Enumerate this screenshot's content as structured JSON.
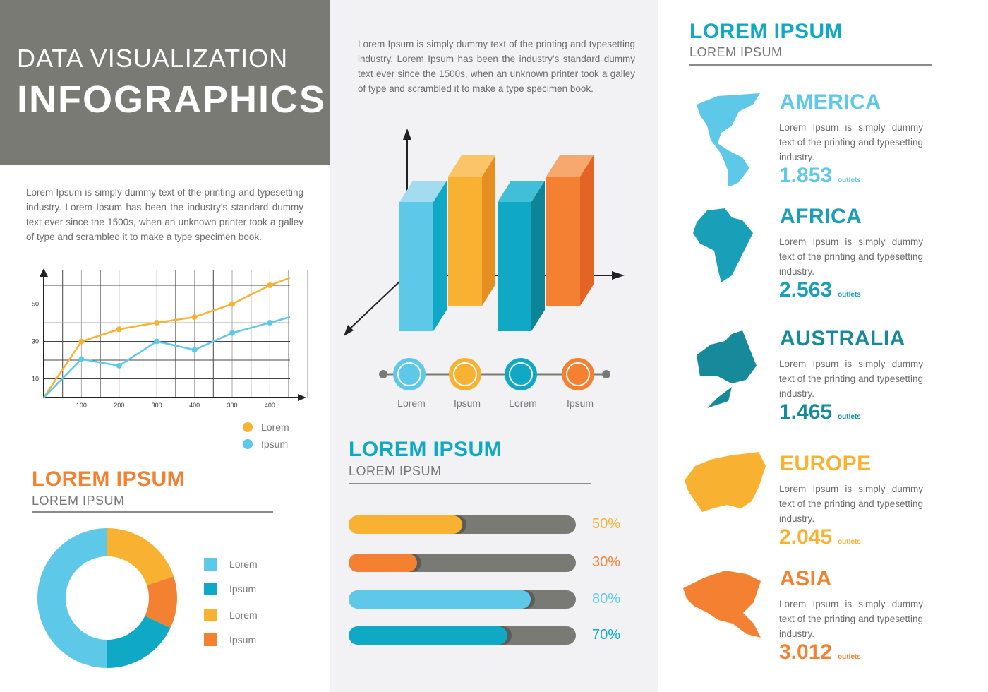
{
  "header": {
    "subtitle": "DATA VISUALIZATION",
    "title": "INFOGRAPHICS"
  },
  "left_paragraph": "Lorem Ipsum is simply dummy text of the printing and typesetting industry. Lorem Ipsum has been the industry's standard dummy text ever since the 1500s, when an unknown printer took a galley of type and scrambled it to make a type specimen book.",
  "middle_paragraph": "Lorem Ipsum is simply dummy text of the printing and typesetting industry. Lorem Ipsum has been the industry's standard dummy text ever since the 1500s, when an unknown printer took a galley of type and scrambled it to make a type specimen book.",
  "colors": {
    "light_blue": "#5ec8e8",
    "teal": "#0fa8c5",
    "yellow": "#f9b132",
    "orange": "#f38131",
    "gray": "#7a7a75",
    "dark_teal": "#16899b"
  },
  "donut_section": {
    "title": "LOREM IPSUM",
    "subtitle": "LOREM IPSUM"
  },
  "progress_section": {
    "title": "LOREM IPSUM",
    "subtitle": "LOREM IPSUM"
  },
  "regions_section": {
    "title": "LOREM IPSUM",
    "subtitle": "LOREM IPSUM"
  },
  "chart_data": [
    {
      "type": "line",
      "x_labels": [
        "100",
        "200",
        "300",
        "400",
        "300",
        "400"
      ],
      "y_ticks": [
        "10",
        "30",
        "50"
      ],
      "ylim": [
        0,
        65
      ],
      "grid": true,
      "legend": "bottom-right",
      "series": [
        {
          "name": "Lorem",
          "color": "#f9b132",
          "values": [
            0,
            30,
            36.5,
            40,
            43,
            50,
            60,
            64
          ]
        },
        {
          "name": "Ipsum",
          "color": "#5ec8e8",
          "values": [
            0,
            20.5,
            17,
            30,
            25.5,
            34.5,
            40,
            43
          ]
        }
      ]
    },
    {
      "type": "bar",
      "style": "3d",
      "categories": [
        "Lorem",
        "Ipsum",
        "Lorem",
        "Ipsum"
      ],
      "values": [
        1,
        1,
        1,
        1
      ],
      "colors": [
        "#5ec8e8",
        "#f9b132",
        "#0fa8c5",
        "#f38131"
      ]
    },
    {
      "type": "pie",
      "donut": true,
      "legend": "right",
      "slices": [
        {
          "label": "Lorem",
          "value": 50,
          "color": "#5ec8e8"
        },
        {
          "label": "Ipsum",
          "value": 18,
          "color": "#0fa8c5"
        },
        {
          "label": "Lorem",
          "value": 20,
          "color": "#f9b132"
        },
        {
          "label": "Ipsum",
          "value": 12,
          "color": "#f38131"
        }
      ]
    },
    {
      "type": "bar",
      "orientation": "horizontal",
      "bars": [
        {
          "value": 50,
          "label": "50%",
          "color": "#f9b132"
        },
        {
          "value": 30,
          "label": "30%",
          "color": "#f38131"
        },
        {
          "value": 80,
          "label": "80%",
          "color": "#5ec8e8"
        },
        {
          "value": 70,
          "label": "70%",
          "color": "#0fa8c5"
        }
      ]
    }
  ],
  "regions": [
    {
      "name": "AMERICA",
      "text": "Lorem Ipsum is simply dummy text of the printing and typesetting industry.",
      "value": "1.853",
      "unit": "outlets",
      "color": "#5ec8e8",
      "icon": "americas-map-icon"
    },
    {
      "name": "AFRICA",
      "text": "Lorem Ipsum is simply dummy text of the printing and typesetting industry.",
      "value": "2.563",
      "unit": "outlets",
      "color": "#1a9fb8",
      "icon": "africa-map-icon"
    },
    {
      "name": "AUSTRALIA",
      "text": "Lorem Ipsum is simply dummy text of the printing and typesetting industry.",
      "value": "1.465",
      "unit": "outlets",
      "color": "#16899b",
      "icon": "australia-map-icon"
    },
    {
      "name": "EUROPE",
      "text": "Lorem Ipsum is simply dummy text of the printing and typesetting industry.",
      "value": "2.045",
      "unit": "outlets",
      "color": "#f9b132",
      "icon": "europe-map-icon"
    },
    {
      "name": "ASIA",
      "text": "Lorem Ipsum is simply dummy text of the printing and typesetting industry.",
      "value": "3.012",
      "unit": "outlets",
      "color": "#f38131",
      "icon": "asia-map-icon"
    }
  ]
}
